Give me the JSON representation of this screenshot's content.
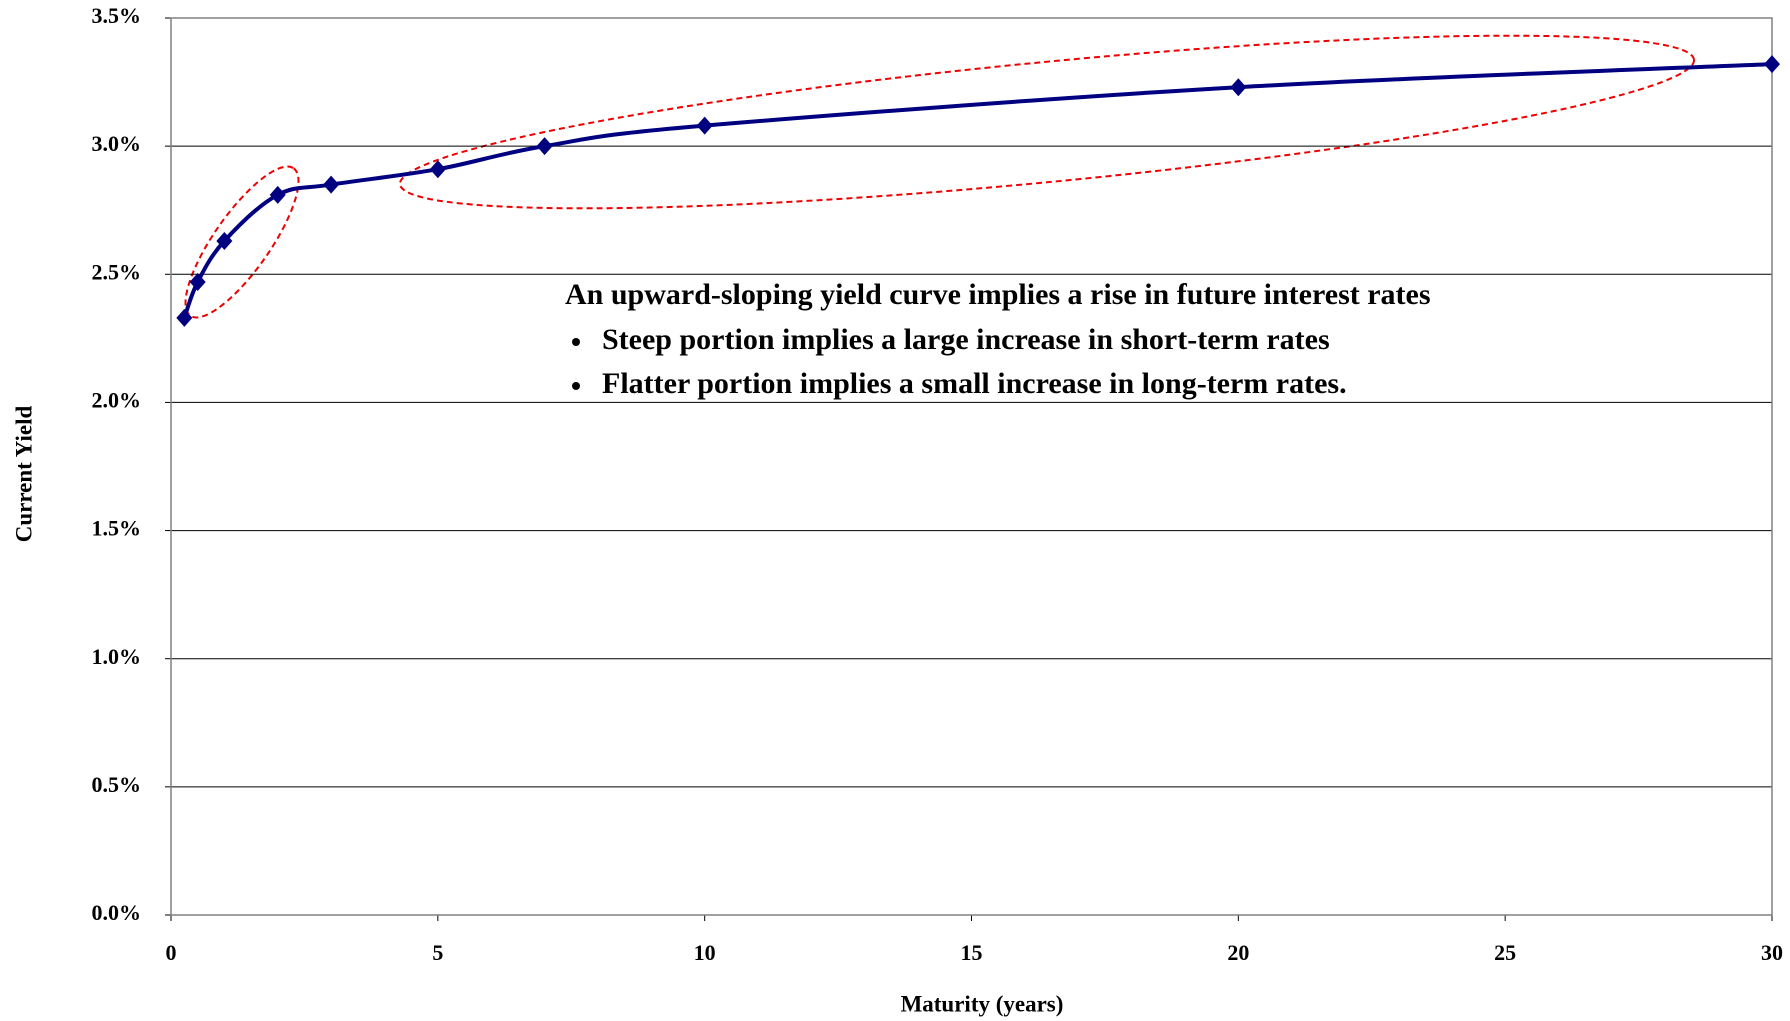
{
  "chart_data": {
    "type": "line",
    "x_label": "Maturity (years)",
    "y_label": "Current Yield",
    "x": [
      0.25,
      0.5,
      1,
      2,
      3,
      5,
      7,
      10,
      20,
      30
    ],
    "values": [
      2.33,
      2.47,
      2.63,
      2.81,
      2.85,
      2.91,
      3.0,
      3.08,
      3.23,
      3.32
    ],
    "color": "#000080",
    "xlim": [
      0,
      30
    ],
    "xticks": [
      0,
      5,
      10,
      15,
      20,
      25,
      30
    ],
    "ylim": [
      0,
      3.5
    ],
    "yticks": [
      {
        "value": 0,
        "label": "0.0%"
      },
      {
        "value": 0.5,
        "label": "0.5%"
      },
      {
        "value": 1,
        "label": "1.0%"
      },
      {
        "value": 1.5,
        "label": "1.5%"
      },
      {
        "value": 2,
        "label": "2.0%"
      },
      {
        "value": 2.5,
        "label": "2.5%"
      },
      {
        "value": 3,
        "label": "3.0%"
      },
      {
        "value": 3.5,
        "label": "3.5%"
      }
    ],
    "grid": true,
    "annotations": [
      "An upward-sloping yield curve implies a rise in future interest rates",
      "Steep portion implies a large increase in short-term rates",
      "Flatter portion implies a small increase in long-term rates."
    ]
  }
}
